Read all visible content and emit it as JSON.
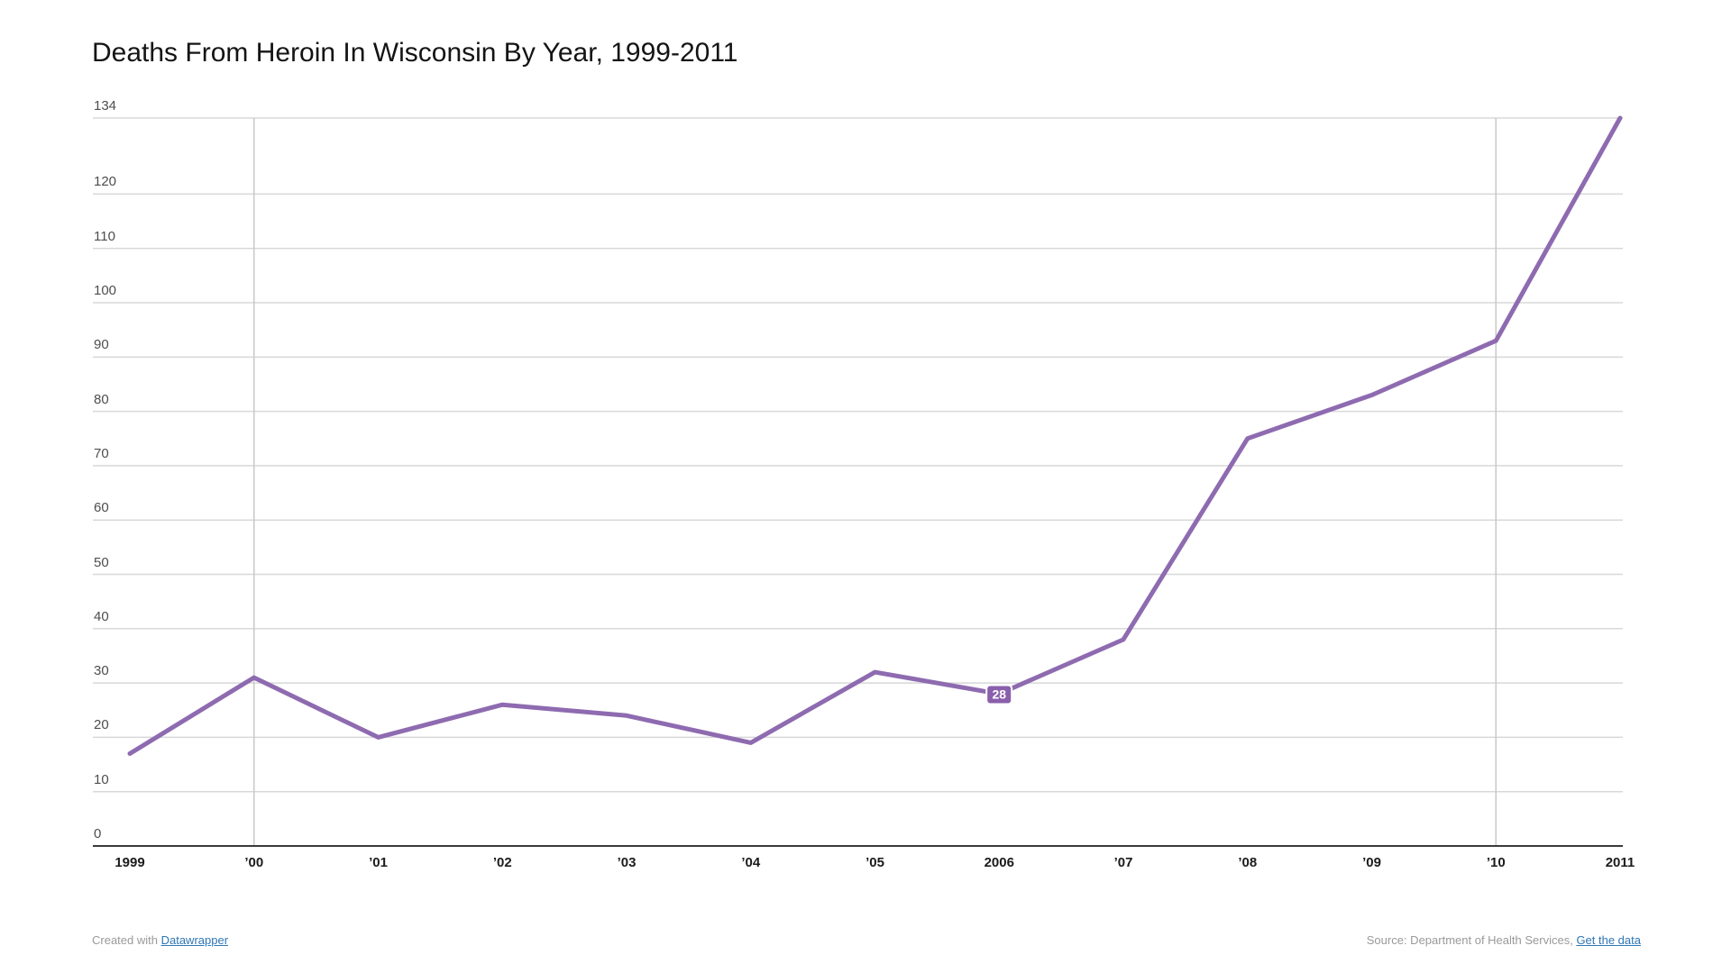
{
  "title": "Deaths From Heroin In Wisconsin By Year, 1999-2011",
  "footer": {
    "created_prefix": "Created with ",
    "created_link": "Datawrapper",
    "source_prefix": "Source: Department of Health Services, ",
    "source_link": "Get the data"
  },
  "chart_data": {
    "type": "line",
    "title": "Deaths From Heroin In Wisconsin By Year, 1999-2011",
    "x": [
      1999,
      2000,
      2001,
      2002,
      2003,
      2004,
      2005,
      2006,
      2007,
      2008,
      2009,
      2010,
      2011
    ],
    "x_tick_labels": [
      "1999",
      "’00",
      "’01",
      "’02",
      "’03",
      "’04",
      "’05",
      "2006",
      "’07",
      "’08",
      "’09",
      "’10",
      "2011"
    ],
    "series": [
      {
        "name": "Deaths from heroin",
        "values": [
          17,
          31,
          20,
          26,
          24,
          19,
          32,
          28,
          38,
          75,
          83,
          93,
          134
        ]
      }
    ],
    "ylim": [
      0,
      134
    ],
    "y_ticks": [
      0,
      10,
      20,
      30,
      40,
      50,
      60,
      70,
      80,
      90,
      100,
      110,
      120,
      134
    ],
    "grid": "horizontal gridlines at every y tick; darker baseline at 0; vertical decade gridlines",
    "vertical_gridlines_at": [
      2000,
      2010
    ],
    "legend": "none",
    "annotated_point": {
      "x": 2006,
      "value": 28,
      "label": "28"
    },
    "colors": {
      "line": "#8e6bb0",
      "badge_fill": "#8a5fac",
      "badge_text": "#ffffff",
      "h_gridline": "#d8d8d8",
      "v_gridline": "#c9c9c9",
      "baseline": "#3a3a3a",
      "y_label": "#4d4d4d",
      "x_label": "#1b1b1b",
      "link": "#2e77b5",
      "footer_text": "#9a9a9a"
    }
  }
}
